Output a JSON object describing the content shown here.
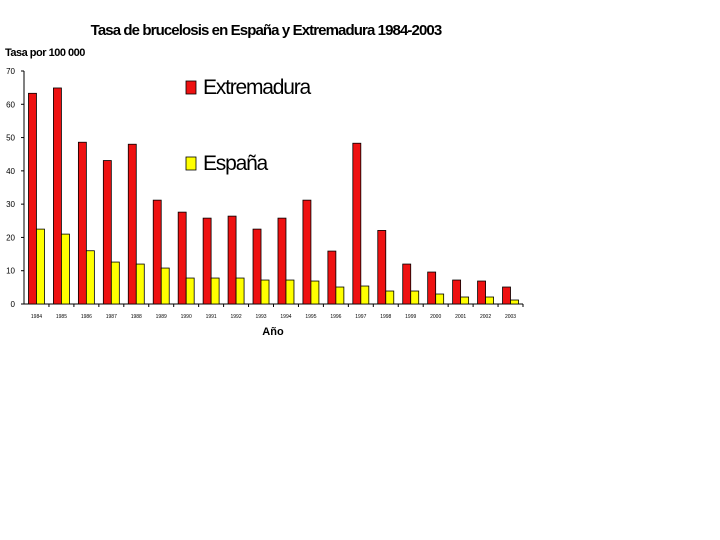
{
  "chart_data": {
    "type": "bar",
    "title": "Tasa de brucelosis en España y Extremadura 1984-2003",
    "ylabel": "Tasa por 100 000",
    "xlabel": "Año",
    "ylim": [
      0,
      70
    ],
    "yticks": [
      "0",
      "10",
      "20",
      "30",
      "40",
      "50",
      "60",
      "70"
    ],
    "categories": [
      "1984",
      "1985",
      "1986",
      "1987",
      "1988",
      "1989",
      "1990",
      "1991",
      "1992",
      "1993",
      "1994",
      "1995",
      "1996",
      "1997",
      "1998",
      "1999",
      "2000",
      "2001",
      "2002",
      "2003"
    ],
    "series": [
      {
        "name": "Extremadura",
        "color": "#ee1111",
        "values": [
          63.3,
          64.9,
          48.6,
          43.1,
          48.0,
          31.2,
          27.6,
          25.8,
          26.4,
          22.5,
          25.8,
          31.2,
          15.9,
          48.3,
          22.1,
          12.0,
          9.6,
          7.2,
          6.9,
          5.1
        ]
      },
      {
        "name": "España",
        "color": "#ffff00",
        "values": [
          22.5,
          21.0,
          16.0,
          12.6,
          12.0,
          10.8,
          7.8,
          7.8,
          7.8,
          7.2,
          7.2,
          6.9,
          5.1,
          5.4,
          3.9,
          3.9,
          3.0,
          2.1,
          2.1,
          1.2
        ]
      }
    ],
    "legend": "top-right",
    "grid": false
  }
}
